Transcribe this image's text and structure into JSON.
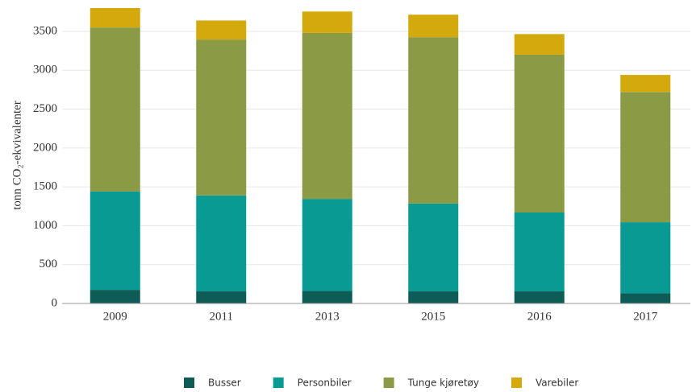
{
  "chart_data": {
    "type": "stacked_bar",
    "y_label": "tonn CO₂-ekvivalenter",
    "categories": [
      "2009",
      "2011",
      "2013",
      "2015",
      "2016",
      "2017"
    ],
    "series": [
      {
        "name": "Busser",
        "color": "#0d5c55",
        "values": [
          175,
          155,
          160,
          155,
          155,
          130
        ]
      },
      {
        "name": "Personbiler",
        "color": "#0a9a94",
        "values": [
          1265,
          1235,
          1185,
          1130,
          1015,
          915
        ]
      },
      {
        "name": "Tunge kjøretøy",
        "color": "#8b9a45",
        "values": [
          2110,
          2005,
          2135,
          2140,
          2030,
          1675
        ]
      },
      {
        "name": "Varebiler",
        "color": "#d4a90d",
        "values": [
          250,
          245,
          275,
          290,
          265,
          220
        ]
      }
    ],
    "ylim": [
      0,
      3800
    ],
    "yticks": [
      0,
      500,
      1000,
      1500,
      2000,
      2500,
      3000,
      3500
    ],
    "grid": true
  }
}
